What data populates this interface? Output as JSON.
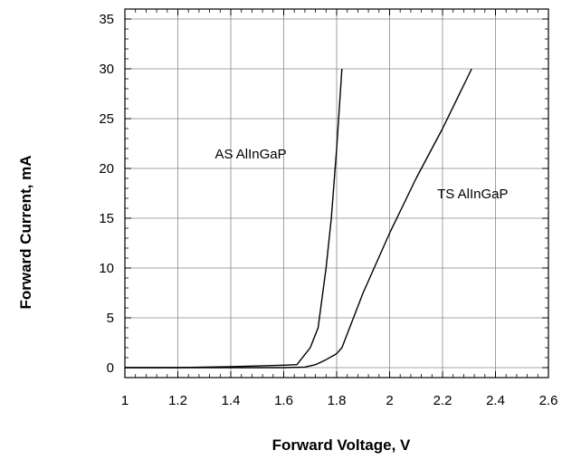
{
  "chart_data": {
    "type": "line",
    "title": "",
    "xlabel": "Forward Voltage, V",
    "ylabel": "Forward Current, mA",
    "xlim": [
      1,
      2.6
    ],
    "ylim": [
      -1,
      36
    ],
    "x_ticks": [
      1,
      1.2,
      1.4,
      1.6,
      1.8,
      2,
      2.2,
      2.4,
      2.6
    ],
    "x_tick_labels": [
      "1",
      "1.2",
      "1.4",
      "1.6",
      "1.8",
      "2",
      "2.2",
      "2.4",
      "2.6"
    ],
    "y_ticks": [
      0,
      5,
      10,
      15,
      20,
      25,
      30,
      35
    ],
    "y_tick_labels": [
      "0",
      "5",
      "10",
      "15",
      "20",
      "25",
      "30",
      "35"
    ],
    "grid": true,
    "series": [
      {
        "name": "AS AlInGaP",
        "x": [
          1.0,
          1.2,
          1.4,
          1.6,
          1.65,
          1.7,
          1.73,
          1.76,
          1.78,
          1.8,
          1.82
        ],
        "y": [
          0,
          0,
          0.1,
          0.25,
          0.3,
          2,
          4,
          10,
          15,
          22,
          30
        ]
      },
      {
        "name": "TS AlInGaP",
        "x": [
          1.0,
          1.4,
          1.6,
          1.68,
          1.72,
          1.76,
          1.8,
          1.82,
          1.9,
          2.0,
          2.1,
          2.2,
          2.31
        ],
        "y": [
          0,
          0,
          0,
          0.05,
          0.3,
          0.8,
          1.4,
          2.0,
          7.5,
          13.5,
          19.0,
          24.0,
          30.0
        ]
      }
    ],
    "annotations": [
      {
        "text": "AS AlInGaP",
        "x": 1.34,
        "y": 21
      },
      {
        "text": "TS AlInGaP",
        "x": 2.18,
        "y": 17
      }
    ]
  }
}
